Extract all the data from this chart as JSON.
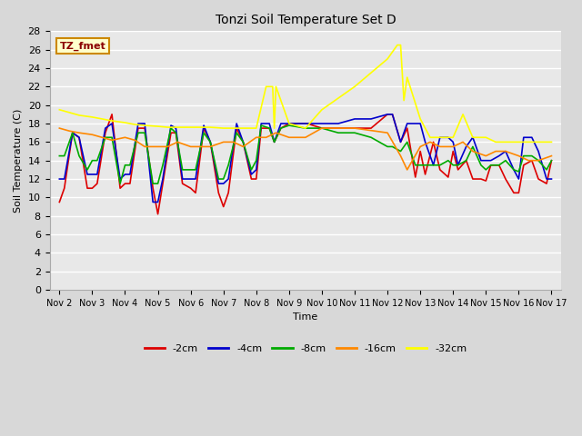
{
  "title": "Tonzi Soil Temperature Set D",
  "xlabel": "Time",
  "ylabel": "Soil Temperature (C)",
  "ylim": [
    0,
    28
  ],
  "yticks": [
    0,
    2,
    4,
    6,
    8,
    10,
    12,
    14,
    16,
    18,
    20,
    22,
    24,
    26,
    28
  ],
  "x_labels": [
    "Nov 2",
    "Nov 3",
    "Nov 4",
    "Nov 5",
    "Nov 6",
    "Nov 7",
    "Nov 8",
    "Nov 9",
    "Nov 10",
    "Nov 11",
    "Nov 12",
    "Nov 13",
    "Nov 14",
    "Nov 15",
    "Nov 16",
    "Nov 17"
  ],
  "annotation_label": "TZ_fmet",
  "annotation_color": "#8b0000",
  "annotation_bg": "#ffffcc",
  "annotation_edge": "#cc8800",
  "background_color": "#d8d8d8",
  "plot_bg": "#e8e8e8",
  "grid_color": "#ffffff",
  "series": {
    "neg2cm": {
      "label": "-2cm",
      "color": "#dd0000",
      "x": [
        0.0,
        0.15,
        0.4,
        0.6,
        0.85,
        1.0,
        1.15,
        1.4,
        1.6,
        1.85,
        2.0,
        2.15,
        2.4,
        2.6,
        2.85,
        3.0,
        3.15,
        3.4,
        3.55,
        3.75,
        4.0,
        4.15,
        4.4,
        4.6,
        4.85,
        5.0,
        5.15,
        5.4,
        5.6,
        5.85,
        6.0,
        6.15,
        6.4,
        6.55,
        6.75,
        7.0,
        7.5,
        7.55,
        8.0,
        8.5,
        9.0,
        9.5,
        10.0,
        10.15,
        10.4,
        10.6,
        10.85,
        11.0,
        11.15,
        11.4,
        11.6,
        11.85,
        12.0,
        12.15,
        12.4,
        12.6,
        12.85,
        13.0,
        13.15,
        13.4,
        13.6,
        13.85,
        14.0,
        14.15,
        14.4,
        14.6,
        14.85,
        15.0
      ],
      "y": [
        9.5,
        11.0,
        17.0,
        16.5,
        11.0,
        11.0,
        11.5,
        17.0,
        19.0,
        11.0,
        11.5,
        11.5,
        17.5,
        17.5,
        11.0,
        8.2,
        11.5,
        17.0,
        17.0,
        11.5,
        11.0,
        10.5,
        17.5,
        16.0,
        10.5,
        9.0,
        10.5,
        17.5,
        16.0,
        12.0,
        12.0,
        17.5,
        17.5,
        16.0,
        17.5,
        18.0,
        18.0,
        18.0,
        17.5,
        17.5,
        17.5,
        17.5,
        19.0,
        19.0,
        16.0,
        17.5,
        12.2,
        15.0,
        12.5,
        16.0,
        13.0,
        12.2,
        15.0,
        13.0,
        14.0,
        12.0,
        12.0,
        11.8,
        13.5,
        13.5,
        12.0,
        10.5,
        10.5,
        13.5,
        14.0,
        12.0,
        11.5,
        14.0
      ]
    },
    "neg4cm": {
      "label": "-4cm",
      "color": "#0000cc",
      "x": [
        0.0,
        0.15,
        0.4,
        0.6,
        0.85,
        1.0,
        1.15,
        1.4,
        1.6,
        1.85,
        2.0,
        2.15,
        2.4,
        2.6,
        2.85,
        3.0,
        3.15,
        3.4,
        3.55,
        3.75,
        4.0,
        4.15,
        4.4,
        4.6,
        4.85,
        5.0,
        5.15,
        5.4,
        5.6,
        5.85,
        6.0,
        6.15,
        6.4,
        6.55,
        6.75,
        7.0,
        7.5,
        8.0,
        8.5,
        9.0,
        9.5,
        10.0,
        10.15,
        10.4,
        10.6,
        10.85,
        11.0,
        11.15,
        11.4,
        11.6,
        11.85,
        12.0,
        12.15,
        12.4,
        12.6,
        12.85,
        13.0,
        13.15,
        13.4,
        13.6,
        13.85,
        14.0,
        14.15,
        14.4,
        14.6,
        14.85,
        15.0
      ],
      "y": [
        12.0,
        12.0,
        17.0,
        16.5,
        12.5,
        12.5,
        12.5,
        17.5,
        18.0,
        12.0,
        12.5,
        12.5,
        18.0,
        18.0,
        9.5,
        9.5,
        12.0,
        17.8,
        17.5,
        12.0,
        12.0,
        12.0,
        17.8,
        16.0,
        11.5,
        11.5,
        12.0,
        18.0,
        16.0,
        12.5,
        13.0,
        18.0,
        18.0,
        16.0,
        18.0,
        18.0,
        18.0,
        18.0,
        18.0,
        18.5,
        18.5,
        19.0,
        19.0,
        16.0,
        18.0,
        18.0,
        18.0,
        16.0,
        13.5,
        16.5,
        16.5,
        16.0,
        13.5,
        15.5,
        16.5,
        14.0,
        14.0,
        14.0,
        14.5,
        15.0,
        13.0,
        12.0,
        16.5,
        16.5,
        15.0,
        12.0,
        12.0
      ]
    },
    "neg8cm": {
      "label": "-8cm",
      "color": "#00aa00",
      "x": [
        0.0,
        0.15,
        0.4,
        0.6,
        0.85,
        1.0,
        1.15,
        1.4,
        1.6,
        1.85,
        2.0,
        2.15,
        2.4,
        2.6,
        2.85,
        3.0,
        3.15,
        3.4,
        3.55,
        3.75,
        4.0,
        4.15,
        4.4,
        4.6,
        4.85,
        5.0,
        5.15,
        5.4,
        5.6,
        5.85,
        6.0,
        6.15,
        6.4,
        6.55,
        6.75,
        7.0,
        7.5,
        8.0,
        8.5,
        9.0,
        9.5,
        10.0,
        10.15,
        10.4,
        10.6,
        10.85,
        11.0,
        11.15,
        11.4,
        11.6,
        11.85,
        12.0,
        12.15,
        12.4,
        12.6,
        12.85,
        13.0,
        13.15,
        13.4,
        13.6,
        13.85,
        14.0,
        14.15,
        14.4,
        14.6,
        14.85,
        15.0
      ],
      "y": [
        14.5,
        14.5,
        17.0,
        14.5,
        13.0,
        14.0,
        14.0,
        16.5,
        16.5,
        11.5,
        13.5,
        13.5,
        17.0,
        17.0,
        11.5,
        11.5,
        13.5,
        17.5,
        17.0,
        13.0,
        13.0,
        13.0,
        17.0,
        16.0,
        12.0,
        12.0,
        13.5,
        17.0,
        16.0,
        13.0,
        14.0,
        17.8,
        17.5,
        16.0,
        17.5,
        17.8,
        17.5,
        17.5,
        17.0,
        17.0,
        16.5,
        15.5,
        15.5,
        15.0,
        16.0,
        13.5,
        13.5,
        13.5,
        13.5,
        13.5,
        14.0,
        13.5,
        13.5,
        14.0,
        15.5,
        13.5,
        13.0,
        13.5,
        13.5,
        14.0,
        13.0,
        12.8,
        14.5,
        14.5,
        14.0,
        13.0,
        14.0
      ]
    },
    "neg16cm": {
      "label": "-16cm",
      "color": "#ff8800",
      "x": [
        0.0,
        0.3,
        0.6,
        1.0,
        1.3,
        1.6,
        2.0,
        2.3,
        2.6,
        3.0,
        3.3,
        3.6,
        4.0,
        4.3,
        4.6,
        5.0,
        5.3,
        5.6,
        6.0,
        6.3,
        6.6,
        7.0,
        7.5,
        8.0,
        9.0,
        10.0,
        10.4,
        10.6,
        11.0,
        11.3,
        11.6,
        12.0,
        12.3,
        12.6,
        13.0,
        13.3,
        13.6,
        14.0,
        14.3,
        14.6,
        15.0
      ],
      "y": [
        17.5,
        17.2,
        17.0,
        16.8,
        16.5,
        16.2,
        16.5,
        16.2,
        15.5,
        15.5,
        15.5,
        16.0,
        15.5,
        15.5,
        15.5,
        16.0,
        16.0,
        15.5,
        16.5,
        16.5,
        17.0,
        16.5,
        16.5,
        17.5,
        17.5,
        17.0,
        14.5,
        13.0,
        15.5,
        16.0,
        15.5,
        15.5,
        16.0,
        15.0,
        14.5,
        15.0,
        15.0,
        14.5,
        14.0,
        14.0,
        14.5
      ]
    },
    "neg32cm": {
      "label": "-32cm",
      "color": "#ffff00",
      "x": [
        0.0,
        0.3,
        0.6,
        1.0,
        1.3,
        1.6,
        2.0,
        2.3,
        2.6,
        3.0,
        3.3,
        3.6,
        4.0,
        4.3,
        4.6,
        5.0,
        5.3,
        5.6,
        6.0,
        6.3,
        6.5,
        6.55,
        6.6,
        7.0,
        7.5,
        8.0,
        9.0,
        10.0,
        10.3,
        10.4,
        10.5,
        10.6,
        11.0,
        11.3,
        11.6,
        12.0,
        12.3,
        12.6,
        13.0,
        13.3,
        13.6,
        14.0,
        14.3,
        14.6,
        15.0
      ],
      "y": [
        19.5,
        19.2,
        18.9,
        18.7,
        18.5,
        18.3,
        18.1,
        17.9,
        17.8,
        17.7,
        17.6,
        17.6,
        17.6,
        17.6,
        17.6,
        17.5,
        17.5,
        17.5,
        17.5,
        22.0,
        22.0,
        17.5,
        22.0,
        18.0,
        17.5,
        19.5,
        22.0,
        25.0,
        26.5,
        26.5,
        20.5,
        23.0,
        18.5,
        16.5,
        16.5,
        16.5,
        19.0,
        16.5,
        16.5,
        16.0,
        16.0,
        16.0,
        16.0,
        16.0,
        16.0
      ]
    }
  }
}
